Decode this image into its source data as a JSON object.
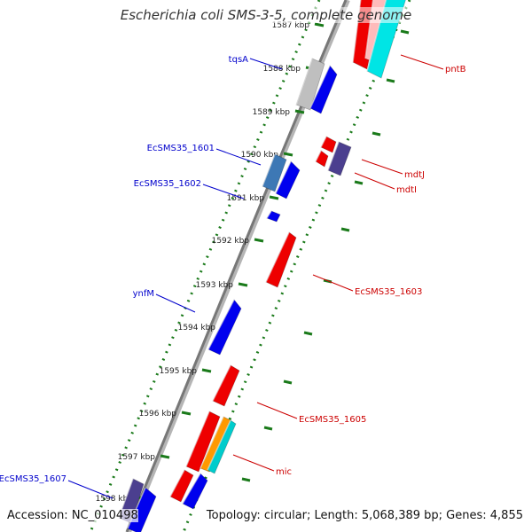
{
  "title": "Escherichia coli SMS-3-5, complete genome",
  "footer": {
    "accession": "Accession: NC_010498",
    "summary": "Topology: circular; Length: 5,068,389 bp; Genes: 4,855"
  },
  "colors": {
    "forward_label": "#0000cc",
    "reverse_label": "#cc0000",
    "tick": "#1a7a1a",
    "backbone": "#777777"
  },
  "ticks": [
    {
      "label": "1587 kbp"
    },
    {
      "label": "1588 kbp"
    },
    {
      "label": "1589 kbp"
    },
    {
      "label": "1590 kbp"
    },
    {
      "label": "1591 kbp"
    },
    {
      "label": "1592 kbp"
    },
    {
      "label": "1593 kbp"
    },
    {
      "label": "1594 kbp"
    },
    {
      "label": "1595 kbp"
    },
    {
      "label": "1596 kbp"
    },
    {
      "label": "1597 kbp"
    },
    {
      "label": "1598 kbp"
    }
  ],
  "gene_labels": [
    {
      "id": "tqsA",
      "text": "tqsA",
      "strand": "forward"
    },
    {
      "id": "EcSMS35_1601",
      "text": "EcSMS35_1601",
      "strand": "forward"
    },
    {
      "id": "EcSMS35_1602",
      "text": "EcSMS35_1602",
      "strand": "forward"
    },
    {
      "id": "ynfM",
      "text": "ynfM",
      "strand": "forward"
    },
    {
      "id": "EcSMS35_1607",
      "text": "EcSMS35_1607",
      "strand": "forward"
    },
    {
      "id": "pntB",
      "text": "pntB",
      "strand": "reverse"
    },
    {
      "id": "mdtJ",
      "text": "mdtJ",
      "strand": "reverse"
    },
    {
      "id": "mdtI",
      "text": "mdtI",
      "strand": "reverse"
    },
    {
      "id": "EcSMS35_1603",
      "text": "EcSMS35_1603",
      "strand": "reverse"
    },
    {
      "id": "EcSMS35_1605",
      "text": "EcSMS35_1605",
      "strand": "reverse"
    },
    {
      "id": "mic",
      "text": "mic",
      "strand": "reverse"
    }
  ],
  "features": [
    {
      "id": "f-pntB-red",
      "color": "#ee0000"
    },
    {
      "id": "f-pntB-pink",
      "color": "#ffbbbb"
    },
    {
      "id": "f-pntB-cyan",
      "color": "#00e5e5"
    },
    {
      "id": "f-gray",
      "color": "#bfbfbf"
    },
    {
      "id": "f-tqsA",
      "color": "#0000ee"
    },
    {
      "id": "f-mdtJ-a",
      "color": "#ee0000"
    },
    {
      "id": "f-mdtJ-b",
      "color": "#ee0000"
    },
    {
      "id": "f-mdtI",
      "color": "#4b3f8f"
    },
    {
      "id": "f-1601a",
      "color": "#3d78b5"
    },
    {
      "id": "f-1601b",
      "color": "#0000ee"
    },
    {
      "id": "f-1602",
      "color": "#0000ee"
    },
    {
      "id": "f-1603",
      "color": "#ee0000"
    },
    {
      "id": "f-ynfM",
      "color": "#0000ee"
    },
    {
      "id": "f-1604",
      "color": "#ee0000"
    },
    {
      "id": "f-1605",
      "color": "#ee0000"
    },
    {
      "id": "f-orange",
      "color": "#ff9900"
    },
    {
      "id": "f-cyan",
      "color": "#00cccc"
    },
    {
      "id": "f-mic",
      "color": "#ee0000"
    },
    {
      "id": "f-blue-low",
      "color": "#0000ee"
    },
    {
      "id": "f-1607",
      "color": "#4b3f8f"
    },
    {
      "id": "f-blue-bottom",
      "color": "#0000ee"
    }
  ]
}
